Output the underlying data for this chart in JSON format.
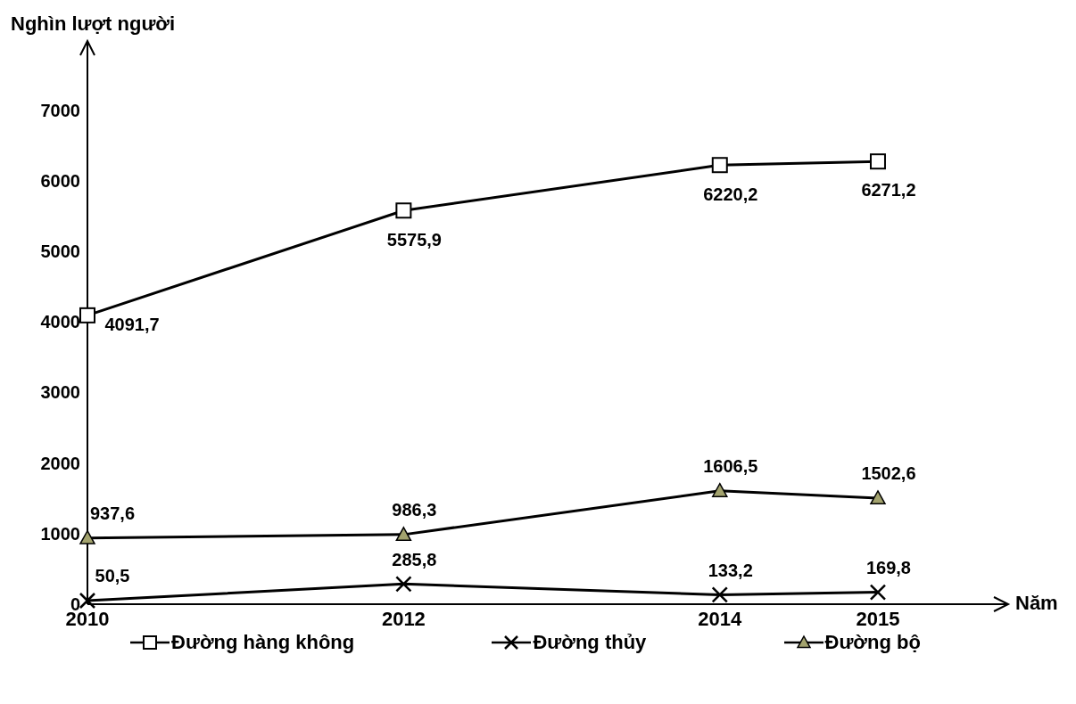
{
  "chart_data": {
    "type": "line",
    "xlabel": "Năm",
    "ylabel": "Nghìn lượt người",
    "x": [
      2010,
      2012,
      2014,
      2015
    ],
    "xlim": [
      2010,
      2015.7
    ],
    "xticks": [
      2010,
      2012,
      2014,
      2015
    ],
    "ylim": [
      0,
      7700
    ],
    "yticks": [
      0,
      1000,
      2000,
      3000,
      4000,
      5000,
      6000,
      7000
    ],
    "grid": false,
    "legend": "bottom",
    "series": [
      {
        "name": "Đường hàng không",
        "color": "#000000",
        "marker": "square",
        "values": [
          4091.7,
          5575.9,
          6220.2,
          6271.2
        ],
        "value_labels": [
          "4091,7",
          "5575,9",
          "6220,2",
          "6271,2"
        ]
      },
      {
        "name": "Đường thủy",
        "color": "#000000",
        "marker": "cross",
        "values": [
          50.5,
          285.8,
          133.2,
          169.8
        ],
        "value_labels": [
          "50,5",
          "285,8",
          "133,2",
          "169,8"
        ]
      },
      {
        "name": "Đường bộ",
        "color": "#000000",
        "marker": "triangle",
        "values": [
          937.6,
          986.3,
          1606.5,
          1502.6
        ],
        "value_labels": [
          "937,6",
          "986,3",
          "1606,5",
          "1502,6"
        ]
      }
    ]
  }
}
